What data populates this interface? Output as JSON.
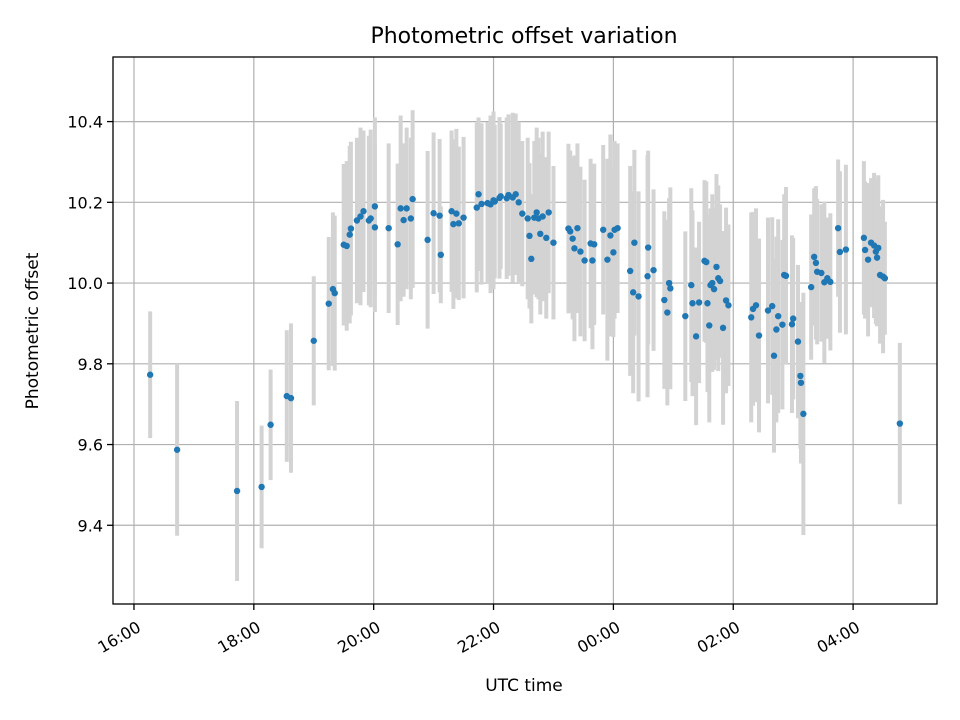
{
  "chart_data": {
    "type": "scatter",
    "title": "Photometric offset variation",
    "xlabel": "UTC time",
    "ylabel": "Photometric offset",
    "x_unit": "hours since 16:00 UTC",
    "xlim": [
      -0.35,
      13.4
    ],
    "ylim": [
      9.205,
      10.56
    ],
    "grid": true,
    "x_ticks": [
      {
        "value": 0,
        "label": "16:00"
      },
      {
        "value": 2,
        "label": "18:00"
      },
      {
        "value": 4,
        "label": "20:00"
      },
      {
        "value": 6,
        "label": "22:00"
      },
      {
        "value": 8,
        "label": "00:00"
      },
      {
        "value": 10,
        "label": "02:00"
      },
      {
        "value": 12,
        "label": "04:00"
      }
    ],
    "y_ticks": [
      {
        "value": 9.4,
        "label": "9.4"
      },
      {
        "value": 9.6,
        "label": "9.6"
      },
      {
        "value": 9.8,
        "label": "9.8"
      },
      {
        "value": 10.0,
        "label": "10.0"
      },
      {
        "value": 10.2,
        "label": "10.2"
      },
      {
        "value": 10.4,
        "label": "10.4"
      }
    ],
    "colors": {
      "point": "#1f77b4",
      "errorbar": "#d3d3d3"
    },
    "series": [
      {
        "name": "offset",
        "points": [
          [
            0.27,
            9.773,
            0.157
          ],
          [
            0.72,
            9.587,
            0.213
          ],
          [
            1.72,
            9.485,
            0.223
          ],
          [
            2.13,
            9.495,
            0.152
          ],
          [
            2.28,
            9.649,
            0.137
          ],
          [
            2.55,
            9.72,
            0.163
          ],
          [
            2.62,
            9.715,
            0.185
          ],
          [
            3.0,
            9.857,
            0.16
          ],
          [
            3.25,
            9.949,
            0.165
          ],
          [
            3.32,
            9.985,
            0.19
          ],
          [
            3.35,
            9.975,
            0.192
          ],
          [
            3.5,
            10.095,
            0.2
          ],
          [
            3.55,
            10.092,
            0.21
          ],
          [
            3.6,
            10.12,
            0.22
          ],
          [
            3.62,
            10.135,
            0.215
          ],
          [
            3.72,
            10.155,
            0.205
          ],
          [
            3.78,
            10.165,
            0.22
          ],
          [
            3.83,
            10.178,
            0.2
          ],
          [
            3.92,
            10.155,
            0.21
          ],
          [
            3.95,
            10.16,
            0.22
          ],
          [
            4.02,
            10.138,
            0.21
          ],
          [
            4.02,
            10.19,
            0.22
          ],
          [
            4.25,
            10.136,
            0.21
          ],
          [
            4.4,
            10.096,
            0.2
          ],
          [
            4.45,
            10.185,
            0.23
          ],
          [
            4.5,
            10.156,
            0.19
          ],
          [
            4.55,
            10.185,
            0.2
          ],
          [
            4.62,
            10.16,
            0.2
          ],
          [
            4.65,
            10.208,
            0.22
          ],
          [
            4.9,
            10.107,
            0.22
          ],
          [
            5.0,
            10.173,
            0.2
          ],
          [
            5.1,
            10.167,
            0.19
          ],
          [
            5.12,
            10.07,
            0.12
          ],
          [
            5.3,
            10.178,
            0.2
          ],
          [
            5.33,
            10.146,
            0.21
          ],
          [
            5.38,
            10.172,
            0.21
          ],
          [
            5.42,
            10.148,
            0.19
          ],
          [
            5.5,
            10.162,
            0.2
          ],
          [
            5.72,
            10.187,
            0.21
          ],
          [
            5.75,
            10.22,
            0.19
          ],
          [
            5.8,
            10.196,
            0.2
          ],
          [
            5.9,
            10.198,
            0.2
          ],
          [
            5.95,
            10.195,
            0.22
          ],
          [
            6.0,
            10.205,
            0.22
          ],
          [
            6.02,
            10.202,
            0.19
          ],
          [
            6.1,
            10.211,
            0.2
          ],
          [
            6.12,
            10.215,
            0.18
          ],
          [
            6.22,
            10.21,
            0.2
          ],
          [
            6.25,
            10.218,
            0.2
          ],
          [
            6.32,
            10.212,
            0.21
          ],
          [
            6.37,
            10.22,
            0.2
          ],
          [
            6.42,
            10.2,
            0.2
          ],
          [
            6.48,
            10.172,
            0.18
          ],
          [
            6.57,
            10.16,
            0.2
          ],
          [
            6.6,
            10.117,
            0.18
          ],
          [
            6.63,
            10.06,
            0.16
          ],
          [
            6.68,
            10.162,
            0.19
          ],
          [
            6.72,
            10.175,
            0.21
          ],
          [
            6.75,
            10.16,
            0.2
          ],
          [
            6.78,
            10.122,
            0.2
          ],
          [
            6.82,
            10.165,
            0.21
          ],
          [
            6.88,
            10.112,
            0.2
          ],
          [
            6.92,
            10.175,
            0.2
          ],
          [
            7.0,
            10.1,
            0.19
          ],
          [
            7.25,
            10.135,
            0.21
          ],
          [
            7.28,
            10.128,
            0.2
          ],
          [
            7.32,
            10.11,
            0.2
          ],
          [
            7.35,
            10.086,
            0.23
          ],
          [
            7.4,
            10.136,
            0.21
          ],
          [
            7.45,
            10.078,
            0.21
          ],
          [
            7.52,
            10.056,
            0.2
          ],
          [
            7.62,
            10.098,
            0.21
          ],
          [
            7.65,
            10.056,
            0.22
          ],
          [
            7.68,
            10.096,
            0.2
          ],
          [
            7.83,
            10.132,
            0.21
          ],
          [
            7.9,
            10.058,
            0.25
          ],
          [
            7.95,
            10.118,
            0.25
          ],
          [
            8.0,
            10.076,
            0.21
          ],
          [
            8.02,
            10.132,
            0.22
          ],
          [
            8.07,
            10.136,
            0.21
          ],
          [
            8.28,
            10.03,
            0.26
          ],
          [
            8.33,
            9.977,
            0.25
          ],
          [
            8.35,
            10.1,
            0.23
          ],
          [
            8.42,
            9.967,
            0.26
          ],
          [
            8.57,
            10.017,
            0.3
          ],
          [
            8.58,
            10.088,
            0.24
          ],
          [
            8.67,
            10.032,
            0.2
          ],
          [
            8.85,
            9.958,
            0.22
          ],
          [
            8.9,
            9.927,
            0.23
          ],
          [
            8.93,
            10.0,
            0.21
          ],
          [
            8.95,
            9.987,
            0.25
          ],
          [
            9.2,
            9.918,
            0.21
          ],
          [
            9.3,
            9.995,
            0.24
          ],
          [
            9.32,
            9.95,
            0.23
          ],
          [
            9.38,
            9.868,
            0.22
          ],
          [
            9.43,
            9.952,
            0.2
          ],
          [
            9.52,
            10.055,
            0.2
          ],
          [
            9.55,
            10.052,
            0.2
          ],
          [
            9.57,
            9.95,
            0.22
          ],
          [
            9.6,
            9.895,
            0.24
          ],
          [
            9.62,
            9.995,
            0.19
          ],
          [
            9.65,
            10.0,
            0.22
          ],
          [
            9.68,
            9.985,
            0.2
          ],
          [
            9.72,
            10.04,
            0.23
          ],
          [
            9.75,
            10.012,
            0.23
          ],
          [
            9.78,
            10.005,
            0.19
          ],
          [
            9.83,
            9.889,
            0.24
          ],
          [
            9.88,
            9.957,
            0.23
          ],
          [
            9.92,
            9.945,
            0.2
          ],
          [
            10.3,
            9.915,
            0.26
          ],
          [
            10.33,
            9.936,
            0.24
          ],
          [
            10.38,
            9.945,
            0.24
          ],
          [
            10.43,
            9.87,
            0.24
          ],
          [
            10.58,
            9.932,
            0.23
          ],
          [
            10.65,
            9.943,
            0.22
          ],
          [
            10.68,
            9.82,
            0.24
          ],
          [
            10.72,
            9.885,
            0.23
          ],
          [
            10.75,
            9.918,
            0.24
          ],
          [
            10.82,
            9.897,
            0.21
          ],
          [
            10.85,
            10.02,
            0.2
          ],
          [
            10.88,
            10.018,
            0.22
          ],
          [
            10.98,
            9.898,
            0.22
          ],
          [
            11.0,
            9.912,
            0.2
          ],
          [
            11.08,
            9.855,
            0.19
          ],
          [
            11.12,
            9.77,
            0.18
          ],
          [
            11.13,
            9.753,
            0.2
          ],
          [
            11.17,
            9.676,
            0.3
          ],
          [
            11.3,
            9.99,
            0.18
          ],
          [
            11.35,
            10.065,
            0.17
          ],
          [
            11.38,
            10.05,
            0.19
          ],
          [
            11.4,
            10.028,
            0.18
          ],
          [
            11.47,
            10.025,
            0.17
          ],
          [
            11.52,
            10.002,
            0.2
          ],
          [
            11.57,
            10.012,
            0.15
          ],
          [
            11.62,
            10.003,
            0.17
          ],
          [
            11.75,
            10.136,
            0.17
          ],
          [
            11.78,
            10.077,
            0.2
          ],
          [
            11.88,
            10.083,
            0.21
          ],
          [
            12.18,
            10.112,
            0.19
          ],
          [
            12.2,
            10.082,
            0.17
          ],
          [
            12.25,
            10.058,
            0.19
          ],
          [
            12.3,
            10.1,
            0.16
          ],
          [
            12.35,
            10.093,
            0.18
          ],
          [
            12.38,
            10.078,
            0.18
          ],
          [
            12.4,
            10.063,
            0.17
          ],
          [
            12.42,
            10.087,
            0.18
          ],
          [
            12.45,
            10.02,
            0.17
          ],
          [
            12.5,
            10.016,
            0.19
          ],
          [
            12.53,
            10.012,
            0.14
          ],
          [
            12.78,
            9.652,
            0.2
          ]
        ]
      }
    ]
  }
}
